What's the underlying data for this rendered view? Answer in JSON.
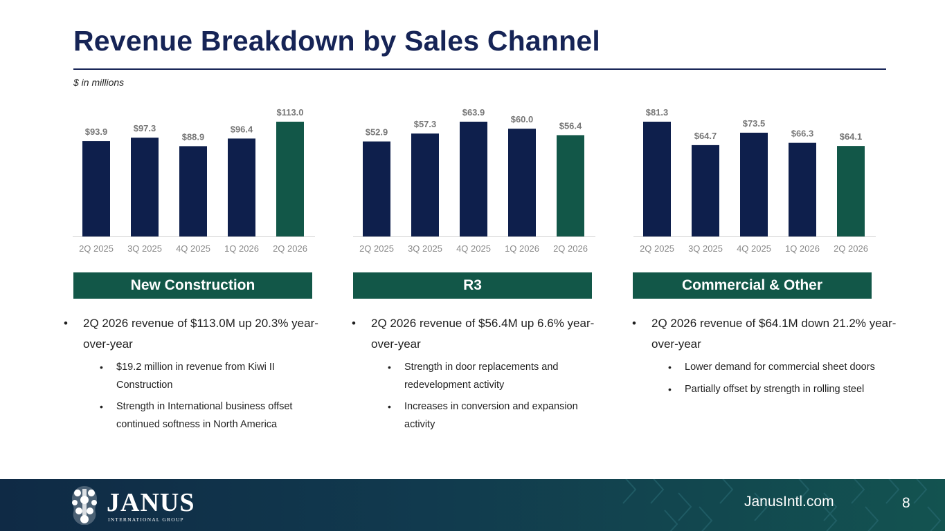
{
  "title": "Revenue Breakdown by Sales Channel",
  "units_note": "$ in millions",
  "colors": {
    "bar_prior": "#0e1f4c",
    "bar_current": "#125748",
    "header_bg": "#125748",
    "title": "#162456"
  },
  "chart_data": [
    {
      "type": "bar",
      "title": "",
      "categories": [
        "2Q 2025",
        "3Q 2025",
        "4Q 2025",
        "1Q 2026",
        "2Q 2026"
      ],
      "values": [
        93.9,
        97.3,
        88.9,
        96.4,
        113.0
      ],
      "value_labels": [
        "$93.9",
        "$97.3",
        "$88.9",
        "$96.4",
        "$113.0"
      ],
      "ylim": [
        0,
        113.0
      ],
      "grid": false,
      "highlight_index": 4
    },
    {
      "type": "bar",
      "title": "",
      "categories": [
        "2Q 2025",
        "3Q 2025",
        "4Q 2025",
        "1Q 2026",
        "2Q 2026"
      ],
      "values": [
        52.9,
        57.3,
        63.9,
        60.0,
        56.4
      ],
      "value_labels": [
        "$52.9",
        "$57.3",
        "$63.9",
        "$60.0",
        "$56.4"
      ],
      "ylim": [
        0,
        63.9
      ],
      "grid": false,
      "highlight_index": 4
    },
    {
      "type": "bar",
      "title": "",
      "categories": [
        "2Q 2025",
        "3Q 2025",
        "4Q 2025",
        "1Q 2026",
        "2Q 2026"
      ],
      "values": [
        81.3,
        64.7,
        73.5,
        66.3,
        64.1
      ],
      "value_labels": [
        "$81.3",
        "$64.7",
        "$73.5",
        "$66.3",
        "$64.1"
      ],
      "ylim": [
        0,
        81.3
      ],
      "grid": false,
      "highlight_index": 4
    }
  ],
  "panels": [
    {
      "header": "New Construction",
      "main_bullet": "2Q 2026 revenue of $113.0M up 20.3% year-over-year",
      "sub_bullets": [
        "$19.2 million in revenue from Kiwi II Construction",
        "Strength in International business offset continued softness in North America"
      ]
    },
    {
      "header": "R3",
      "main_bullet": "2Q 2026 revenue of $56.4M up 6.6% year-over-year",
      "sub_bullets": [
        "Strength in door replacements and redevelopment activity",
        "Increases in conversion and expansion activity"
      ]
    },
    {
      "header": "Commercial & Other",
      "main_bullet": "2Q 2026 revenue of $64.1M down 21.2% year-over-year",
      "sub_bullets": [
        "Lower demand for commercial sheet doors",
        "Partially offset by strength in rolling steel"
      ]
    }
  ],
  "footer": {
    "logo_word": "JANUS",
    "logo_tagline": "INTERNATIONAL GROUP",
    "logo_icon": "janus-emblem-icon",
    "website": "JanusIntl.com",
    "page_number": "8"
  }
}
